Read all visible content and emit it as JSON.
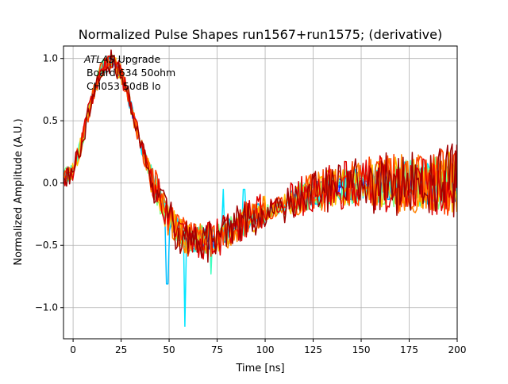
{
  "chart_data": {
    "type": "line",
    "title": "Normalized Pulse Shapes run1567+run1575; (derivative)",
    "xlabel": "Time [ns]",
    "ylabel": "Normalized Amplitude (A.U.)",
    "xlim": [
      -5,
      200
    ],
    "ylim": [
      -1.25,
      1.1
    ],
    "xticks": [
      0,
      25,
      50,
      75,
      100,
      125,
      150,
      175,
      200
    ],
    "xtick_labels": [
      "0",
      "25",
      "50",
      "75",
      "100",
      "125",
      "150",
      "175",
      "200"
    ],
    "yticks": [
      -1.0,
      -0.5,
      0.0,
      0.5,
      1.0
    ],
    "ytick_labels": [
      "−1.0",
      "−0.5",
      "0.0",
      "0.5",
      "1.0"
    ],
    "grid": true,
    "annotation": {
      "italic": "ATLAS",
      "line1_rest": " Upgrade",
      "line2": "Board 634 50ohm",
      "line3": "CH053 50dB lo"
    },
    "series_count": 12,
    "series_colors": [
      "#0000ff",
      "#0040ff",
      "#0080ff",
      "#00bfff",
      "#00e5ff",
      "#40ffbf",
      "#80ff80",
      "#ffbf00",
      "#ff8000",
      "#ff4000",
      "#e00000",
      "#a00000"
    ],
    "envelope": {
      "x": [
        -5,
        0,
        5,
        10,
        15,
        20,
        25,
        30,
        35,
        40,
        45,
        50,
        55,
        60,
        65,
        70,
        75,
        80,
        85,
        90,
        95,
        100,
        105,
        110,
        115,
        120,
        125,
        130,
        135,
        140,
        145,
        150,
        155,
        160,
        165,
        170,
        175,
        180,
        185,
        190,
        195,
        200
      ],
      "y": [
        0.05,
        0.1,
        0.35,
        0.7,
        0.92,
        0.98,
        0.88,
        0.62,
        0.32,
        0.08,
        -0.12,
        -0.3,
        -0.4,
        -0.45,
        -0.45,
        -0.47,
        -0.44,
        -0.4,
        -0.35,
        -0.3,
        -0.26,
        -0.23,
        -0.2,
        -0.17,
        -0.13,
        -0.1,
        -0.08,
        -0.06,
        -0.04,
        -0.03,
        -0.02,
        -0.01,
        0.0,
        0.0,
        0.0,
        0.0,
        0.0,
        0.0,
        0.0,
        0.0,
        0.0,
        0.0
      ]
    },
    "spikes": [
      {
        "series": 3,
        "x": 49,
        "y": -0.81
      },
      {
        "series": 4,
        "x": 58,
        "y": -1.15
      },
      {
        "series": 5,
        "x": 72,
        "y": -0.73
      },
      {
        "series": 4,
        "x": 78,
        "y": -0.05
      },
      {
        "series": 4,
        "x": 89,
        "y": -0.05
      }
    ]
  }
}
